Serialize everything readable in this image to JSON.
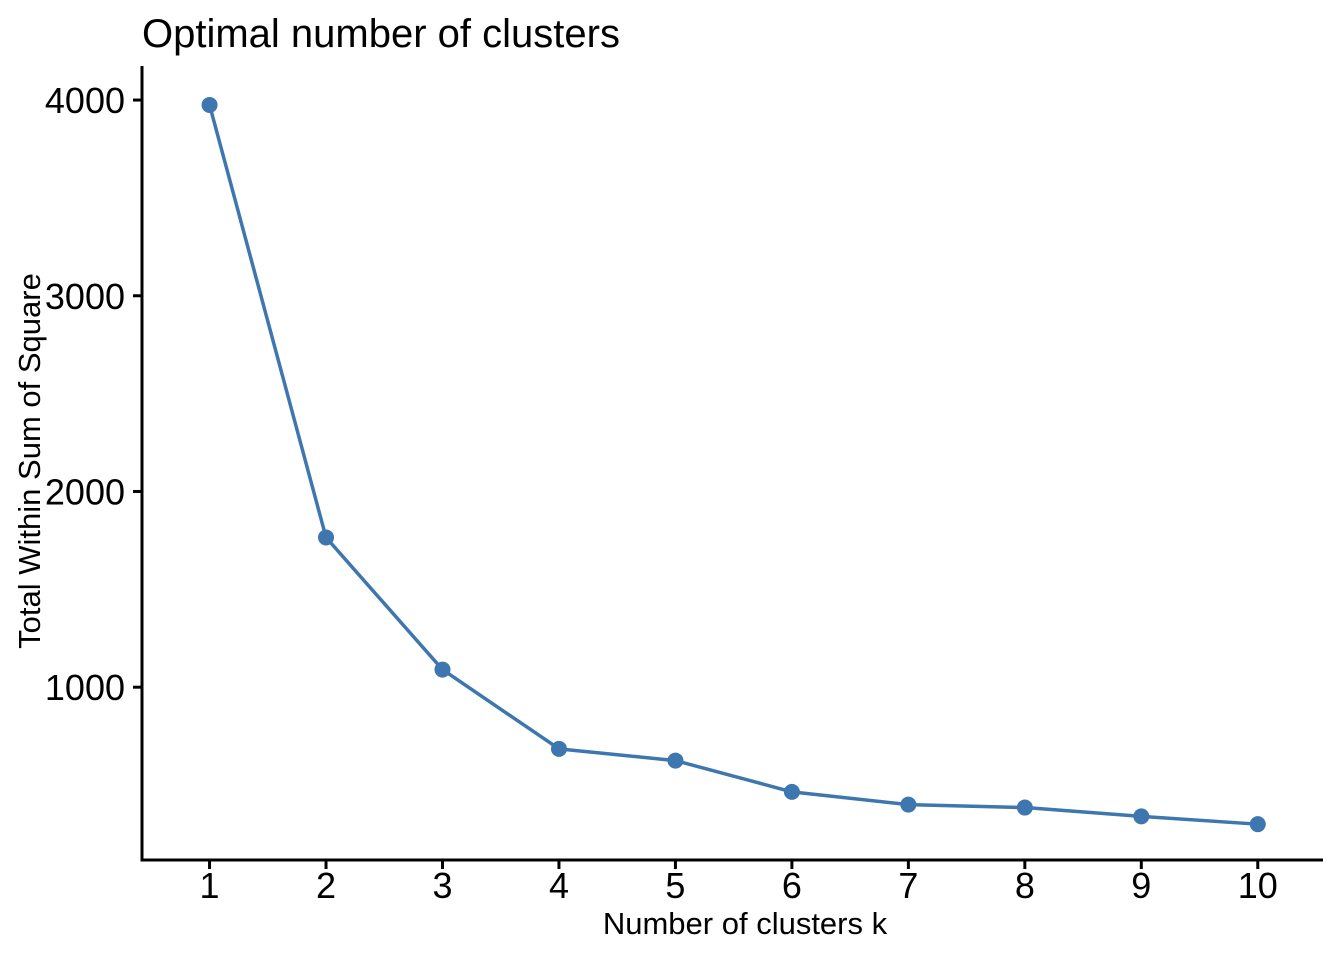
{
  "chart_data": {
    "type": "line",
    "title": "Optimal number of clusters",
    "xlabel": "Number of clusters k",
    "ylabel": "Total Within Sum of Square",
    "x": [
      1,
      2,
      3,
      4,
      5,
      6,
      7,
      8,
      9,
      10
    ],
    "series": [
      {
        "name": "Total within sum of square",
        "values": [
          3975,
          1765,
          1090,
          685,
          625,
          465,
          400,
          385,
          340,
          300
        ]
      }
    ],
    "x_tick_labels": [
      "1",
      "2",
      "3",
      "4",
      "5",
      "6",
      "7",
      "8",
      "9",
      "10"
    ],
    "y_tick_values": [
      1000,
      2000,
      3000,
      4000
    ],
    "y_tick_labels": [
      "1000",
      "2000",
      "3000",
      "4000"
    ],
    "xlim": [
      0.42,
      10.56
    ],
    "ylim": [
      117,
      4174
    ],
    "grid": false,
    "legend_position": "none",
    "colors": {
      "line": "#3E76AF",
      "marker": "#3E76AF",
      "axis": "#000000",
      "text": "#000000",
      "background": "#FFFFFF"
    },
    "marker": "circle",
    "theme": "classic"
  }
}
